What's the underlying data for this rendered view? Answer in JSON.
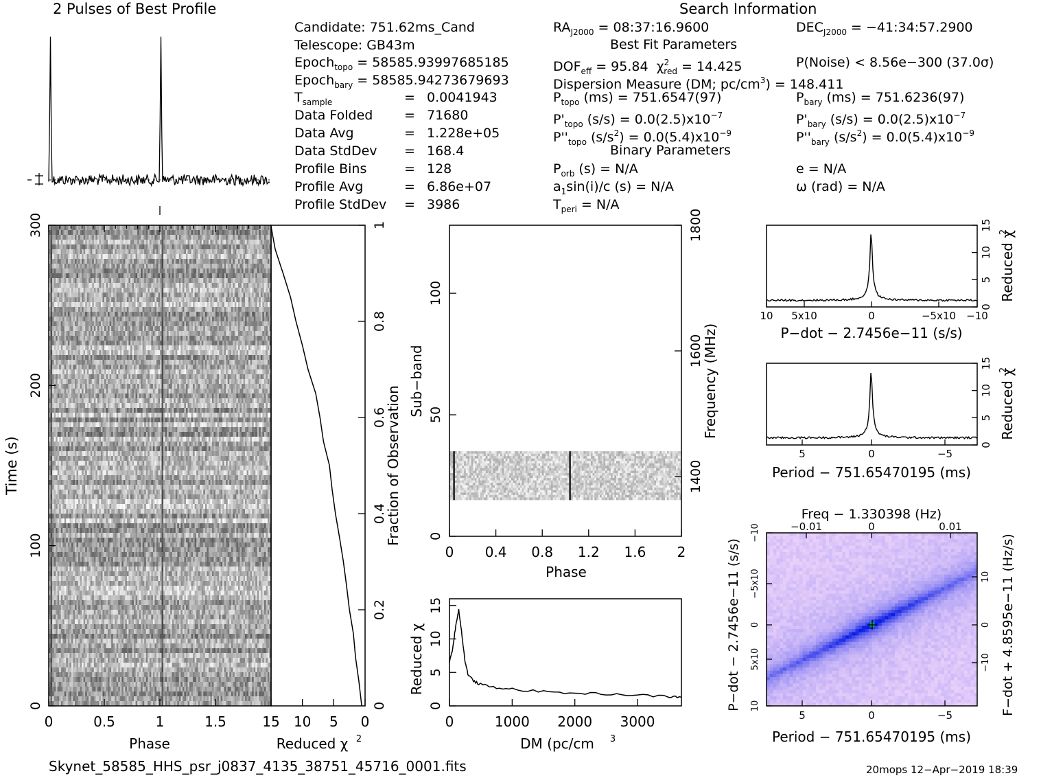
{
  "header": {
    "profile_title": "2 Pulses of Best Profile",
    "search_title": "Search Information",
    "best_fit_title": "Best Fit Parameters",
    "binary_title": "Binary Parameters"
  },
  "info": {
    "candidate": "Candidate:  751.62ms_Cand",
    "telescope": "Telescope:  GB43m",
    "epoch_topo": " = 58585.93997685185",
    "epoch_bary": " = 58585.94273679693",
    "tsample": "0.0041943",
    "data_folded": "71680",
    "data_avg": "1.228e+05",
    "data_stddev": "168.4",
    "profile_bins": "128",
    "profile_avg": "6.86e+07",
    "profile_stddev": "3986",
    "lbl_data_folded": "Data Folded",
    "lbl_data_avg": "Data Avg",
    "lbl_data_stddev": "Data StdDev",
    "lbl_profile_bins": "Profile Bins",
    "lbl_profile_avg": "Profile Avg",
    "lbl_profile_stddev": "Profile StdDev",
    "eq": "="
  },
  "search": {
    "ra": " = 08:37:16.9600",
    "dec": " = −41:34:57.2900",
    "dof": " = 95.84",
    "chi2": " = 14.425",
    "pnoise": "P(Noise) < 8.56e−300   (37.0σ)",
    "dm": "Dispersion Measure (DM; pc/cm",
    "dm_val": ") = 148.411",
    "ptopo": " (ms) =  751.6547(97)",
    "pbary": " (ms) =  751.6236(97)",
    "pdot_topo": " (s/s) = 0.0(2.5)x10",
    "pdot_bary": " (s/s) = 0.0(2.5)x10",
    "pddot_topo": " (s/s",
    "pddot_topo_val": ") = 0.0(5.4)x10",
    "pddot_bary": " (s/s",
    "pddot_bary_val": ") = 0.0(5.4)x10",
    "exp7": "−7",
    "exp9": "−9",
    "porb": " (s) = N/A",
    "ecc": "e = N/A",
    "asini": "sin(i)/c (s) = N/A",
    "omega": "ω (rad) = N/A",
    "tperi": " = N/A"
  },
  "footer": {
    "filename": "Skynet_58585_HHS_psr_j0837_4135_38751_45716_0001.fits",
    "stamp": "20mops 12−Apr−2019 18:39"
  },
  "chart_data": [
    {
      "type": "line",
      "name": "profile",
      "title": "2 Pulses of Best Profile",
      "x_range": [
        0,
        2
      ],
      "pulse_peaks_phase": [
        0.015,
        1.015
      ],
      "peak_rel": 1.0,
      "baseline_rel": 0.03
    },
    {
      "type": "heatmap",
      "name": "time-phase",
      "xlabel": "Phase",
      "ylabel": "Time (s)",
      "xlim": [
        0,
        2
      ],
      "ylim": [
        0,
        300
      ],
      "xticks": [
        "0",
        "0.5",
        "1",
        "1.5"
      ],
      "yticks": [
        "0",
        "100",
        "200",
        "300"
      ]
    },
    {
      "type": "line",
      "name": "reduced-chi2-vs-fraction",
      "xlabel": "Reduced χ",
      "ylabel": "Fraction of Observation",
      "xlim": [
        15,
        0
      ],
      "ylim": [
        0,
        1
      ],
      "xticks": [
        "15",
        "10",
        "5",
        "0"
      ],
      "yticks": [
        "0.2",
        "0.4",
        "0.6",
        "0.8",
        "1"
      ],
      "x": [
        0.5,
        1,
        1.5,
        2,
        2.5,
        3,
        3.5,
        4,
        4.6,
        5.2,
        5.8,
        6.5,
        7.2,
        8,
        9,
        10,
        11,
        12,
        13,
        14.3,
        15
      ],
      "y": [
        0,
        0.05,
        0.1,
        0.15,
        0.2,
        0.25,
        0.3,
        0.35,
        0.4,
        0.45,
        0.5,
        0.55,
        0.6,
        0.65,
        0.7,
        0.75,
        0.8,
        0.85,
        0.9,
        0.95,
        1
      ]
    },
    {
      "type": "heatmap",
      "name": "subband-phase",
      "xlabel": "Phase",
      "ylabel": "Sub−band",
      "ylabel_right": "Frequency (MHz)",
      "xlim": [
        0,
        2
      ],
      "ylim": [
        0,
        128
      ],
      "xticks": [
        "0",
        "0.4",
        "0.8",
        "1.2",
        "1.6",
        "2"
      ],
      "yticks": [
        "0",
        "50",
        "100"
      ],
      "yticks_right": [
        "1400",
        "1600",
        "1800"
      ],
      "band_subbands": [
        15,
        35
      ]
    },
    {
      "type": "line",
      "name": "dm-curve",
      "xlabel": "DM (pc/cm",
      "ylabel": "Reduced χ",
      "xlim": [
        0,
        3700
      ],
      "ylim": [
        0,
        16
      ],
      "xticks": [
        "0",
        "1000",
        "2000",
        "3000"
      ],
      "yticks": [
        "0",
        "5",
        "10",
        "15"
      ],
      "x": [
        0,
        50,
        100,
        148,
        200,
        250,
        300,
        400,
        500,
        700,
        1000,
        1500,
        2000,
        2500,
        3000,
        3500,
        3700
      ],
      "y": [
        6.5,
        8.5,
        12,
        14.4,
        10.5,
        6.5,
        4.6,
        3.6,
        3.2,
        2.8,
        2.5,
        2.1,
        1.9,
        1.8,
        1.6,
        1.4,
        1.3
      ]
    },
    {
      "type": "line",
      "name": "pdot-curve",
      "xlabel": "P−dot − 2.7456e−11 (s/s)",
      "ylabel": "Reduced χ",
      "ylim": [
        0,
        15
      ],
      "xticks": [
        "10",
        "5x10",
        "0",
        "−5x10",
        "−10"
      ],
      "yticks": [
        "0",
        "5",
        "10",
        "15"
      ],
      "peak": 14.4,
      "baseline": 1.2
    },
    {
      "type": "line",
      "name": "period-curve",
      "xlabel": "Period − 751.65470195 (ms)",
      "ylabel": "Reduced χ",
      "ylim": [
        0,
        15
      ],
      "xticks": [
        "5",
        "0",
        "−5"
      ],
      "yticks": [
        "0",
        "5",
        "10",
        "15"
      ],
      "peak": 14.4,
      "baseline": 1.3
    },
    {
      "type": "heatmap",
      "name": "period-pdot",
      "title_top": "Freq − 1.330398 (Hz)",
      "xlabel": "Period − 751.65470195 (ms)",
      "ylabel": "P−dot − 2.7456e−11 (s/s)",
      "ylabel_right": "F−dot + 4.8595e−11 (Hz/s)",
      "xticks": [
        "5",
        "0",
        "−5"
      ],
      "xticks_top": [
        "−0.01",
        "0",
        "0.01"
      ],
      "yticks": [
        "10",
        "5x10",
        "0",
        "−5x10",
        "−10"
      ],
      "yticks_right": [
        "−10",
        "0",
        "10"
      ]
    }
  ]
}
